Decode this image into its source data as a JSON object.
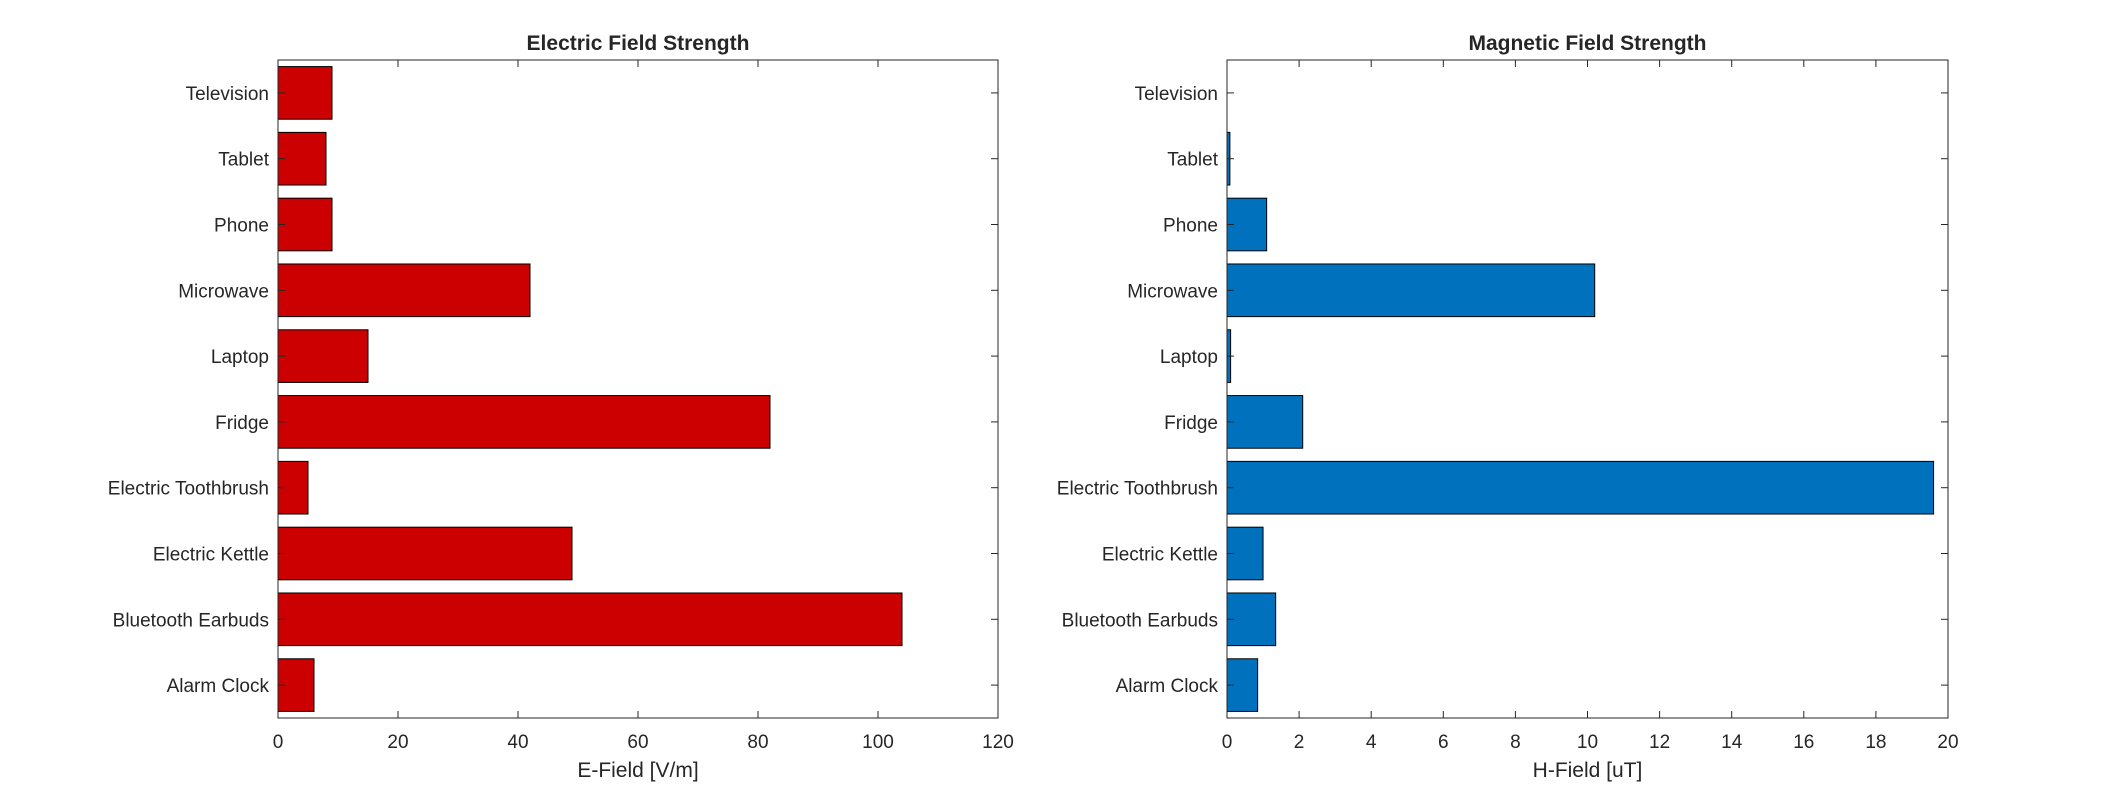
{
  "chart_data": [
    {
      "type": "bar",
      "orientation": "horizontal",
      "title": "Electric Field Strength",
      "xlabel": "E-Field [V/m]",
      "ylabel": "",
      "categories": [
        "Alarm Clock",
        "Bluetooth Earbuds",
        "Electric Kettle",
        "Electric Toothbrush",
        "Fridge",
        "Laptop",
        "Microwave",
        "Phone",
        "Tablet",
        "Television"
      ],
      "values": [
        6,
        104,
        49,
        5,
        82,
        15,
        42,
        9,
        8,
        9
      ],
      "xlim": [
        0,
        120
      ],
      "xticks": [
        "0",
        "20",
        "40",
        "60",
        "80",
        "100",
        "120"
      ],
      "color": "#CC0000",
      "grid": false
    },
    {
      "type": "bar",
      "orientation": "horizontal",
      "title": "Magnetic Field Strength",
      "xlabel": "H-Field [uT]",
      "ylabel": "",
      "categories": [
        "Alarm Clock",
        "Bluetooth Earbuds",
        "Electric Kettle",
        "Electric Toothbrush",
        "Fridge",
        "Laptop",
        "Microwave",
        "Phone",
        "Tablet",
        "Television"
      ],
      "values": [
        0.85,
        1.35,
        1.0,
        19.6,
        2.1,
        0.1,
        10.2,
        1.1,
        0.08,
        0.0
      ],
      "xlim": [
        0,
        20
      ],
      "xticks": [
        "0",
        "2",
        "4",
        "6",
        "8",
        "10",
        "12",
        "14",
        "16",
        "18",
        "20"
      ],
      "color": "#0072BD",
      "grid": false
    }
  ]
}
